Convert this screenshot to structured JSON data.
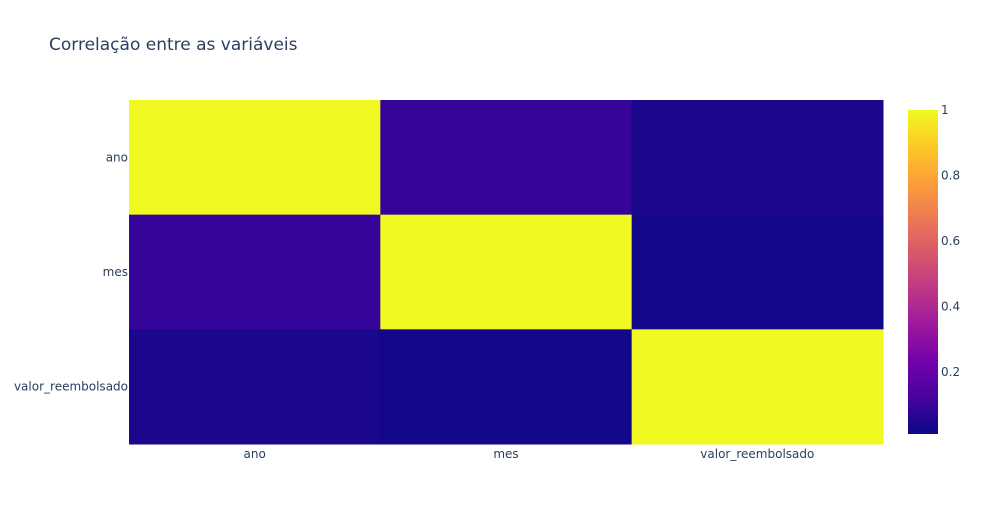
{
  "chart_data": {
    "type": "heatmap",
    "title": "Correlação entre as variáveis",
    "x_categories": [
      "ano",
      "mes",
      "valor_reembolsado"
    ],
    "y_categories": [
      "ano",
      "mes",
      "valor_reembolsado"
    ],
    "z": [
      [
        1.0,
        0.088,
        0.035
      ],
      [
        0.088,
        1.0,
        0.022
      ],
      [
        0.035,
        0.022,
        1.0
      ]
    ],
    "zlim": [
      0.01,
      1.0
    ],
    "colorscale": "plasma",
    "colorbar": {
      "ticks": [
        0.2,
        0.4,
        0.6,
        0.8,
        1
      ],
      "tick_labels": [
        "0.2",
        "0.4",
        "0.6",
        "0.8",
        "1"
      ]
    },
    "colors": {
      "scale": [
        "#0d0887",
        "#46039f",
        "#7201a8",
        "#9c179e",
        "#bd3786",
        "#d8576b",
        "#ed7953",
        "#fb9f3a",
        "#fdca26",
        "#f0f921"
      ],
      "text": "#2a3f5f"
    }
  }
}
